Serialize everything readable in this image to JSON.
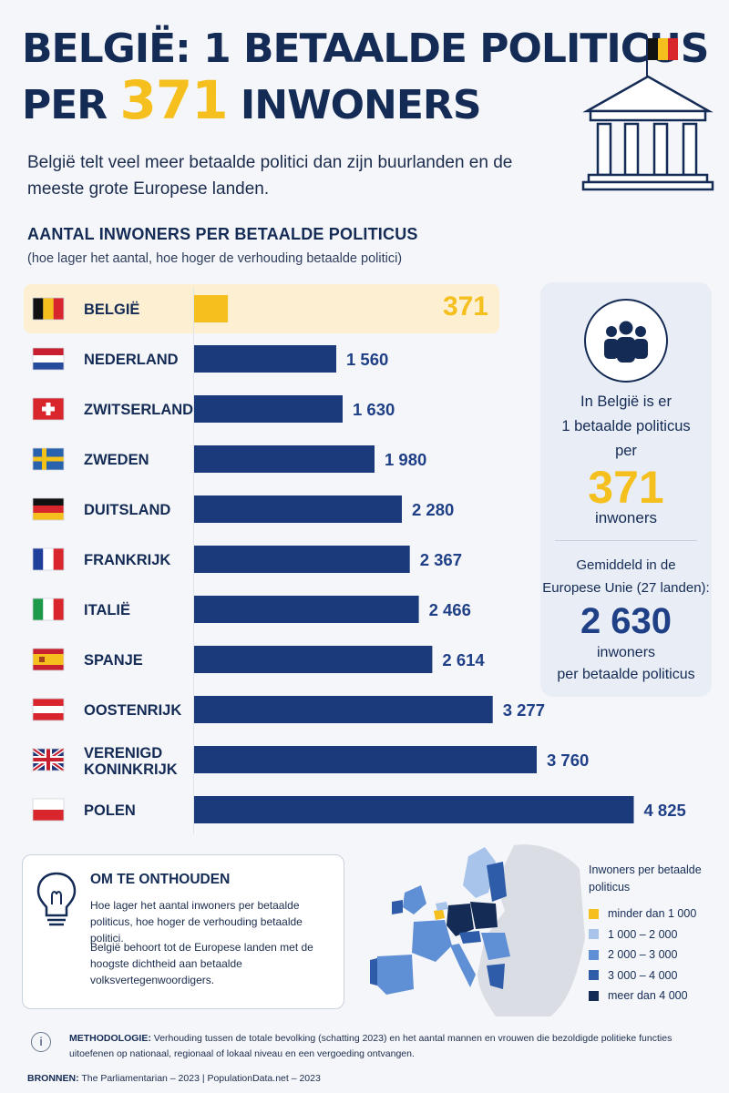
{
  "header": {
    "title_line1": "BELGIË: 1 BETAALDE POLITICUS",
    "title_line2_prefix": "PER",
    "title_line2_highlight": "371",
    "title_line2_suffix": "INWONERS",
    "subtitle": "België telt veel meer betaalde politici dan zijn buurlanden en de meeste grote Europese landen."
  },
  "section": {
    "title": "AANTAL INWONERS PER BETAALDE POLITICUS",
    "note": "(hoe lager het aantal, hoe hoger de verhouding betaalde politici)"
  },
  "chart_data": {
    "type": "bar",
    "orientation": "horizontal",
    "title": "AANTAL INWONERS PER BETAALDE POLITICUS",
    "categories": [
      "BELGIË",
      "NEDERLAND",
      "ZWITSERLAND",
      "ZWEDEN",
      "DUITSLAND",
      "FRANKRIJK",
      "ITALIË",
      "SPANJE",
      "OOSTENRIJK",
      "VERENIGD KONINKRIJK",
      "POLEN"
    ],
    "values": [
      371,
      1560,
      1630,
      1980,
      2280,
      2367,
      2466,
      2614,
      3277,
      3760,
      4825
    ],
    "value_labels": [
      "371",
      "1 560",
      "1 630",
      "1 980",
      "2 280",
      "2 367",
      "2 466",
      "2 614",
      "3 277",
      "3 760",
      "4 825"
    ],
    "flags": [
      "belgium",
      "netherlands",
      "switzerland",
      "sweden",
      "germany",
      "france",
      "italy",
      "spain",
      "austria",
      "united-kingdom",
      "poland"
    ],
    "highlight_index": 0,
    "colors": {
      "highlight": "#f5bf1d",
      "default": "#1a3a7c",
      "highlight_label": "#f5bf1d",
      "default_label": "#1f3f86"
    },
    "xlim": [
      0,
      5000
    ],
    "grid": false,
    "legend": "none"
  },
  "stat_card": {
    "line1": "In België is er",
    "line2": "1 betaalde politicus",
    "line3": "per",
    "big_value": "371",
    "unit": "inwoners",
    "eu_line1": "Gemiddeld in de",
    "eu_line2": "Europese Unie (27 landen):",
    "eu_value": "2 630",
    "eu_unit_line1": "inwoners",
    "eu_unit_line2": "per betaalde politicus",
    "icon": "people-group-icon"
  },
  "remember": {
    "title": "OM TE ONTHOUDEN",
    "text1": "Hoe lager het aantal inwoners per betaalde politicus, hoe hoger de verhouding betaalde politici.",
    "text2": "België behoort tot de Europese landen met de hoogste dichtheid aan betaalde volksvertegenwoordigers.",
    "icon": "lightbulb-icon"
  },
  "map_legend": {
    "title": "Inwoners per betaalde politicus",
    "items": [
      {
        "label": "minder dan 1 000",
        "color": "#f5bf1d"
      },
      {
        "label": "1 000 – 2 000",
        "color": "#a8c4ea"
      },
      {
        "label": "2 000 – 3 000",
        "color": "#5f8fd4"
      },
      {
        "label": "3 000 – 4 000",
        "color": "#2f5ca8"
      },
      {
        "label": "meer dan 4 000",
        "color": "#142b55"
      }
    ]
  },
  "methodology": {
    "label": "METHODOLOGIE:",
    "text": "Verhouding tussen de totale bevolking (schatting 2023) en het aantal mannen en vrouwen die bezoldigde politieke functies uitoefenen op nationaal, regionaal of lokaal niveau en een vergoeding ontvangen."
  },
  "sources": {
    "label": "BRONNEN:",
    "text": "The Parliamentarian – 2023  |  PopulationData.net – 2023"
  }
}
